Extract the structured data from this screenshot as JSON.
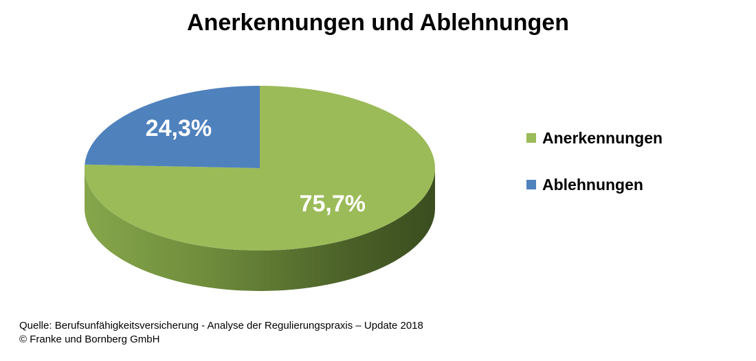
{
  "chart_data": {
    "type": "pie",
    "title": "Anerkennungen und Ablehnungen",
    "slices": [
      {
        "name": "Anerkennungen",
        "value": 75.7,
        "label": "75,7%",
        "color": "#9BBB59"
      },
      {
        "name": "Ablehnungen",
        "value": 24.3,
        "label": "24,3%",
        "color": "#4F81BD"
      }
    ],
    "legend_position": "right",
    "style": "3d-tilted"
  },
  "footer": {
    "source": "Quelle: Berufsunfähigkeitsversicherung - Analyse der Regulierungspraxis – Update 2018",
    "copyright": "© Franke und Bornberg GmbH"
  }
}
